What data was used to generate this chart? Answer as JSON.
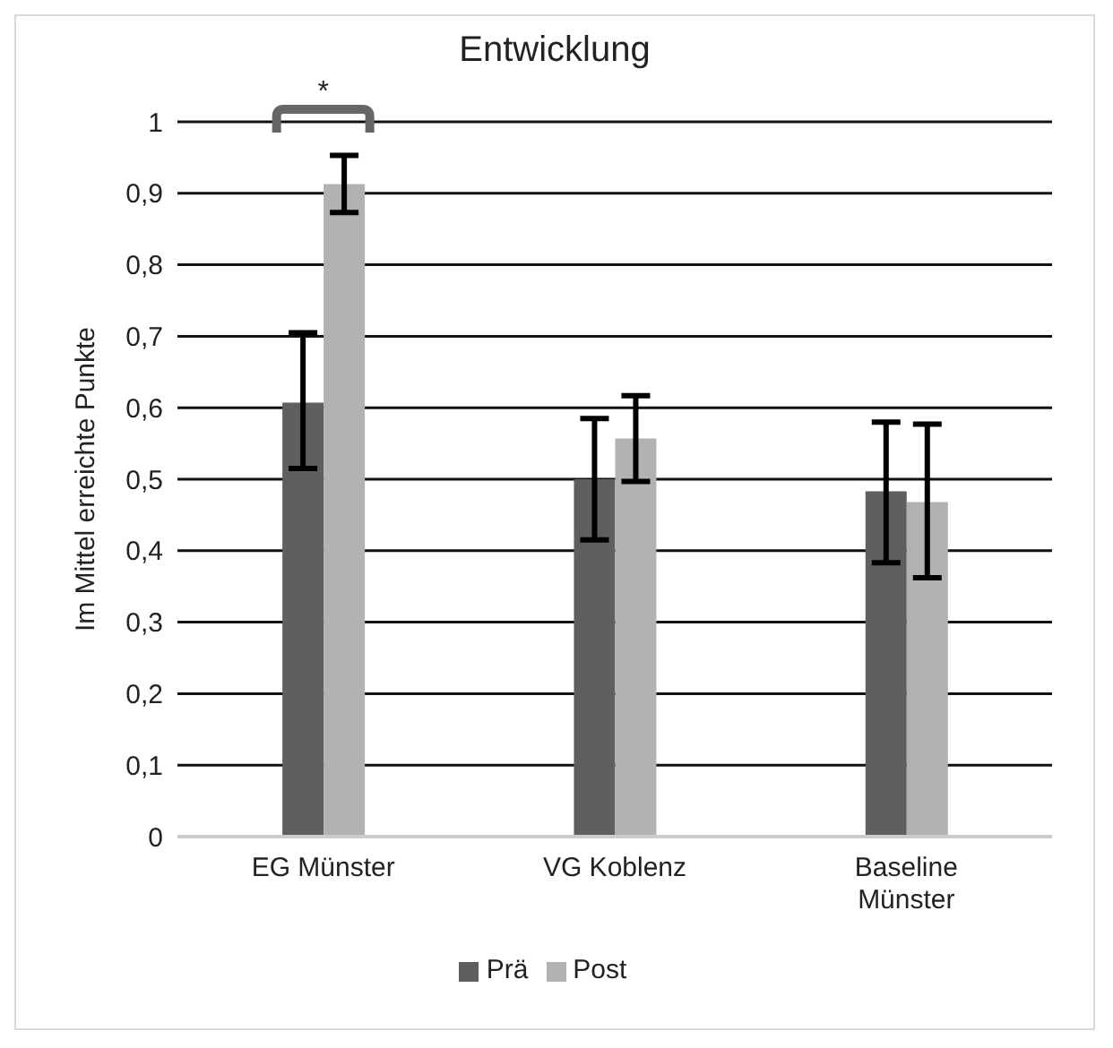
{
  "chart_data": {
    "type": "bar",
    "title": "Entwicklung",
    "ylabel": "Im Mittel erreichte Punkte",
    "categories": [
      "EG Münster",
      "VG Koblenz",
      "Baseline Münster"
    ],
    "series": [
      {
        "name": "Prä",
        "color": "#5f5f5f",
        "values": [
          0.607,
          0.5,
          0.483
        ],
        "errors": [
          [
            0.515,
            0.705
          ],
          [
            0.415,
            0.585
          ],
          [
            0.383,
            0.58
          ]
        ]
      },
      {
        "name": "Post",
        "color": "#b2b2b2",
        "values": [
          0.913,
          0.557,
          0.468
        ],
        "errors": [
          [
            0.873,
            0.953
          ],
          [
            0.497,
            0.617
          ],
          [
            0.362,
            0.577
          ]
        ]
      }
    ],
    "ylim": [
      0,
      1
    ],
    "yticks": [
      0,
      {
        "value": 0.1,
        "label": "0,1"
      },
      {
        "value": 0.2,
        "label": "0,2"
      },
      {
        "value": 0.3,
        "label": "0,3"
      },
      {
        "value": 0.4,
        "label": "0,4"
      },
      {
        "value": 0.5,
        "label": "0,5"
      },
      {
        "value": 0.6,
        "label": "0,6"
      },
      {
        "value": 0.7,
        "label": "0,7"
      },
      {
        "value": 0.8,
        "label": "0,8"
      },
      {
        "value": 0.9,
        "label": "0,9"
      },
      1
    ],
    "grid": "y",
    "legend": "bottom",
    "annotations": [
      "*"
    ]
  }
}
